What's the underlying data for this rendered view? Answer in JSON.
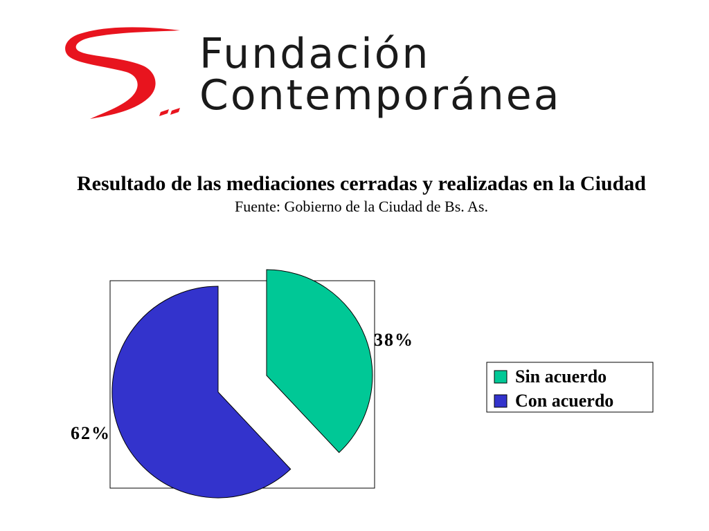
{
  "logo": {
    "line1": "Fundación",
    "line2": "Contemporánea",
    "mark_color": "#e8141e"
  },
  "header": {
    "title": "Resultado de las mediaciones cerradas y realizadas en la Ciudad",
    "subtitle": "Fuente: Gobierno de la Ciudad de Bs. As."
  },
  "chart_data": {
    "type": "pie",
    "title": "Resultado de las mediaciones cerradas y realizadas en la Ciudad",
    "subtitle": "Fuente: Gobierno de la Ciudad de Bs. As.",
    "exploded": true,
    "legend_position": "right",
    "series": [
      {
        "name": "Sin acuerdo",
        "value": 38,
        "label": "38%",
        "color": "#00c896"
      },
      {
        "name": "Con acuerdo",
        "value": 62,
        "label": "62%",
        "color": "#3333cc"
      }
    ]
  }
}
